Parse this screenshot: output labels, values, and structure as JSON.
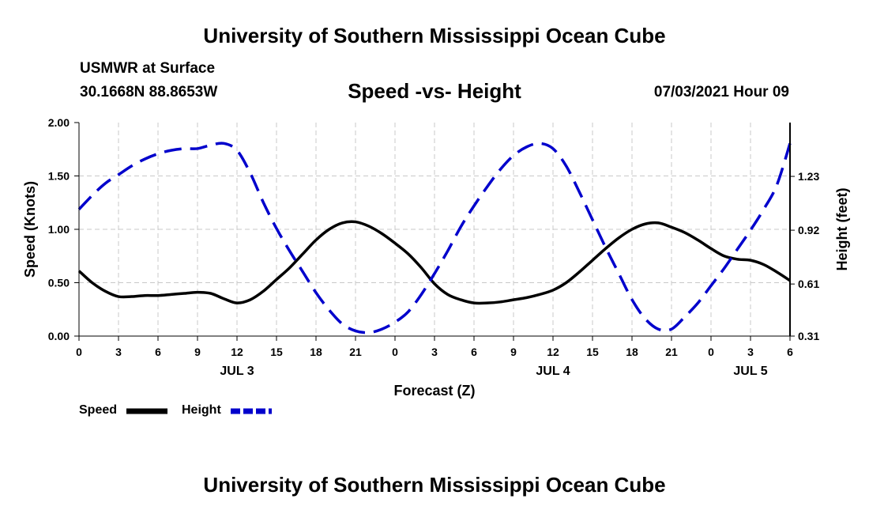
{
  "header": {
    "title": "University of Southern Mississippi Ocean Cube",
    "station": "USMWR at Surface",
    "coords": "30.1668N  88.8653W",
    "chart_title": "Speed -vs- Height",
    "datetime": "07/03/2021 Hour 09"
  },
  "footer": {
    "title": "University of Southern Mississippi Ocean Cube"
  },
  "legend": {
    "speed_label": "Speed",
    "height_label": "Height"
  },
  "colors": {
    "speed": "#000000",
    "height": "#0000cc",
    "grid": "#c8c8c8"
  },
  "chart_data": {
    "type": "line",
    "title": "Speed -vs- Height",
    "xlabel": "Forecast (Z)",
    "ylabel": "Speed (Knots)",
    "y2label": "Height (feet)",
    "xlim": [
      0,
      54
    ],
    "ylim": [
      0,
      2.0
    ],
    "y2lim": [
      0.31,
      1.54
    ],
    "x_ticks": [
      0,
      3,
      6,
      9,
      12,
      15,
      18,
      21,
      24,
      27,
      30,
      33,
      36,
      39,
      42,
      45,
      48,
      51,
      54
    ],
    "x_tick_labels": [
      "0",
      "3",
      "6",
      "9",
      "12",
      "15",
      "18",
      "21",
      "0",
      "3",
      "6",
      "9",
      "12",
      "15",
      "18",
      "21",
      "0",
      "3",
      "6"
    ],
    "y_ticks": [
      0,
      0.5,
      1.0,
      1.5,
      2.0
    ],
    "y_tick_labels": [
      "0.00",
      "0.50",
      "1.00",
      "1.50",
      "2.00"
    ],
    "y2_ticks": [
      0.31,
      0.61,
      0.92,
      1.23
    ],
    "y2_tick_labels": [
      "0.31",
      "0.61",
      "0.92",
      "1.23"
    ],
    "date_labels": [
      {
        "x": 12,
        "label": "JUL 3"
      },
      {
        "x": 36,
        "label": "JUL 4"
      },
      {
        "x": 51,
        "label": "JUL 5"
      }
    ],
    "grid": true,
    "series": [
      {
        "name": "Speed",
        "axis": "left",
        "style": "solid",
        "x": [
          0,
          1,
          2,
          3,
          4,
          5,
          6,
          7,
          8,
          9,
          10,
          11,
          12,
          13,
          14,
          15,
          16,
          17,
          18,
          19,
          20,
          21,
          22,
          23,
          24,
          25,
          26,
          27,
          28,
          29,
          30,
          31,
          32,
          33,
          34,
          35,
          36,
          37,
          38,
          39,
          40,
          41,
          42,
          43,
          44,
          45,
          46,
          47,
          48,
          49,
          50,
          51,
          52,
          53,
          54
        ],
        "values": [
          0.61,
          0.5,
          0.42,
          0.37,
          0.37,
          0.38,
          0.38,
          0.39,
          0.4,
          0.41,
          0.4,
          0.35,
          0.31,
          0.34,
          0.42,
          0.53,
          0.64,
          0.77,
          0.9,
          1.0,
          1.06,
          1.07,
          1.03,
          0.96,
          0.87,
          0.77,
          0.64,
          0.49,
          0.39,
          0.34,
          0.31,
          0.31,
          0.32,
          0.34,
          0.36,
          0.39,
          0.43,
          0.5,
          0.6,
          0.71,
          0.82,
          0.92,
          1.0,
          1.05,
          1.06,
          1.02,
          0.97,
          0.9,
          0.82,
          0.75,
          0.72,
          0.71,
          0.67,
          0.6,
          0.52
        ]
      },
      {
        "name": "Height",
        "axis": "right",
        "style": "dashed",
        "x": [
          0,
          1,
          2,
          3,
          4,
          5,
          6,
          7,
          8,
          9,
          10,
          11,
          12,
          13,
          14,
          15,
          16,
          17,
          18,
          19,
          20,
          21,
          22,
          23,
          24,
          25,
          26,
          27,
          28,
          29,
          30,
          31,
          32,
          33,
          34,
          35,
          36,
          37,
          38,
          39,
          40,
          41,
          42,
          43,
          44,
          45,
          46,
          47,
          48,
          49,
          50,
          51,
          52,
          53,
          54
        ],
        "values": [
          1.04,
          1.12,
          1.19,
          1.24,
          1.29,
          1.33,
          1.36,
          1.38,
          1.39,
          1.39,
          1.41,
          1.42,
          1.38,
          1.25,
          1.08,
          0.93,
          0.8,
          0.68,
          0.56,
          0.46,
          0.38,
          0.34,
          0.33,
          0.35,
          0.39,
          0.45,
          0.55,
          0.67,
          0.8,
          0.94,
          1.06,
          1.17,
          1.27,
          1.35,
          1.4,
          1.42,
          1.39,
          1.29,
          1.14,
          0.98,
          0.82,
          0.67,
          0.52,
          0.41,
          0.35,
          0.35,
          0.42,
          0.5,
          0.6,
          0.7,
          0.81,
          0.92,
          1.04,
          1.18,
          1.42
        ]
      }
    ]
  }
}
